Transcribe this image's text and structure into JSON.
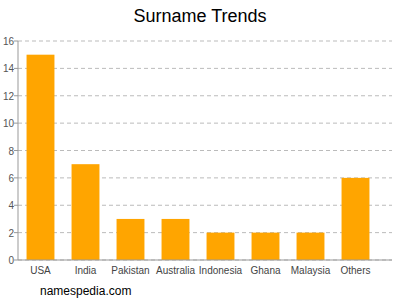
{
  "chart_data": {
    "type": "bar",
    "title": "Surname Trends",
    "categories": [
      "USA",
      "India",
      "Pakistan",
      "Australia",
      "Indonesia",
      "Ghana",
      "Malaysia",
      "Others"
    ],
    "values": [
      15,
      7,
      3,
      3,
      2,
      2,
      2,
      6
    ],
    "color": "#ffa500",
    "ylim": [
      0,
      16
    ],
    "yticks": [
      0,
      2,
      4,
      6,
      8,
      10,
      12,
      14,
      16
    ],
    "grid": true,
    "source": "namespedia.com"
  }
}
